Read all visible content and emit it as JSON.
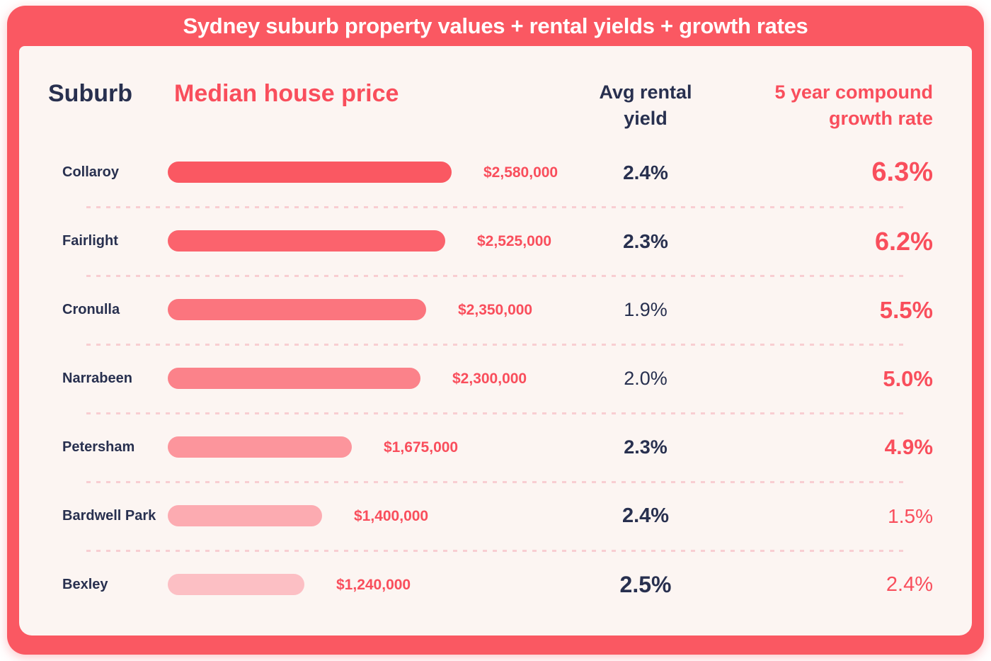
{
  "title": "Sydney suburb property values + rental yields + growth rates",
  "header": {
    "suburb": "Suburb",
    "median_price": "Median house price",
    "rental_yield": [
      "Avg rental",
      "yield"
    ],
    "growth_rate": [
      "5 year compound",
      "growth rate"
    ]
  },
  "colors": {
    "accent_band": "#fa5862",
    "accent_text": "#f94e5c",
    "navy": "#28304f",
    "content_bg": "#fcf5f2",
    "separator": "#f8ced2",
    "page_bg": "#ffffff"
  },
  "rows": [
    {
      "suburb": "Collaroy",
      "price": 2580000,
      "price_label": "$2,580,000",
      "bar_color": "#fa5862",
      "yield_label": "2.4%",
      "yield_weight": 700,
      "yield_size": 28,
      "growth_label": "6.3%",
      "growth_weight": 700,
      "growth_size": 38
    },
    {
      "suburb": "Fairlight",
      "price": 2525000,
      "price_label": "$2,525,000",
      "bar_color": "#fb636d",
      "yield_label": "2.3%",
      "yield_weight": 700,
      "yield_size": 28,
      "growth_label": "6.2%",
      "growth_weight": 700,
      "growth_size": 36
    },
    {
      "suburb": "Cronulla",
      "price": 2350000,
      "price_label": "$2,350,000",
      "bar_color": "#fb757e",
      "yield_label": "1.9%",
      "yield_weight": 400,
      "yield_size": 27,
      "growth_label": "5.5%",
      "growth_weight": 700,
      "growth_size": 33
    },
    {
      "suburb": "Narrabeen",
      "price": 2300000,
      "price_label": "$2,300,000",
      "bar_color": "#fb828a",
      "yield_label": "2.0%",
      "yield_weight": 400,
      "yield_size": 27,
      "growth_label": "5.0%",
      "growth_weight": 700,
      "growth_size": 31
    },
    {
      "suburb": "Petersham",
      "price": 1675000,
      "price_label": "$1,675,000",
      "bar_color": "#fc959c",
      "yield_label": "2.3%",
      "yield_weight": 700,
      "yield_size": 27,
      "growth_label": "4.9%",
      "growth_weight": 700,
      "growth_size": 30
    },
    {
      "suburb": "Bardwell Park",
      "price": 1400000,
      "price_label": "$1,400,000",
      "bar_color": "#fcabb1",
      "yield_label": "2.4%",
      "yield_weight": 700,
      "yield_size": 29,
      "growth_label": "1.5%",
      "growth_weight": 400,
      "growth_size": 28
    },
    {
      "suburb": "Bexley",
      "price": 1240000,
      "price_label": "$1,240,000",
      "bar_color": "#fcbfc4",
      "yield_label": "2.5%",
      "yield_weight": 700,
      "yield_size": 32,
      "growth_label": "2.4%",
      "growth_weight": 400,
      "growth_size": 29
    }
  ],
  "chart_data": {
    "type": "bar",
    "orientation": "horizontal",
    "title": "Sydney suburb property values + rental yields + growth rates",
    "categories": [
      "Collaroy",
      "Fairlight",
      "Cronulla",
      "Narrabeen",
      "Petersham",
      "Bardwell Park",
      "Bexley"
    ],
    "series": [
      {
        "name": "Median house price",
        "unit": "AUD",
        "values": [
          2580000,
          2525000,
          2350000,
          2300000,
          1675000,
          1400000,
          1240000
        ],
        "labels": [
          "$2,580,000",
          "$2,525,000",
          "$2,350,000",
          "$2,300,000",
          "$1,675,000",
          "$1,400,000",
          "$1,240,000"
        ]
      },
      {
        "name": "Avg rental yield",
        "unit": "%",
        "values": [
          2.4,
          2.3,
          1.9,
          2.0,
          2.3,
          2.4,
          2.5
        ],
        "labels": [
          "2.4%",
          "2.3%",
          "1.9%",
          "2.0%",
          "2.3%",
          "2.4%",
          "2.5%"
        ]
      },
      {
        "name": "5 year compound growth rate",
        "unit": "%",
        "values": [
          6.3,
          6.2,
          5.5,
          5.0,
          4.9,
          1.5,
          2.4
        ],
        "labels": [
          "6.3%",
          "6.2%",
          "5.5%",
          "5.0%",
          "4.9%",
          "1.5%",
          "2.4%"
        ]
      }
    ],
    "x_range": [
      0,
      2580000
    ],
    "grid": false,
    "legend": "none",
    "bar_value_labels": true
  }
}
